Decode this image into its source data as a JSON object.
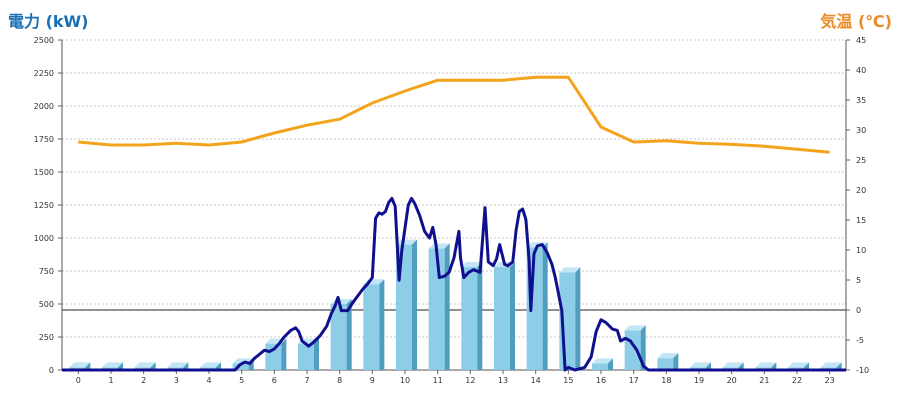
{
  "colors": {
    "bar_face": "#8ecde8",
    "bar_top": "#c2e6f6",
    "bar_side": "#4f9dbf",
    "power_line": "#10108f",
    "temp_line": "#f4a41c",
    "left_title": "#1a6fb4",
    "right_title": "#ee8a23",
    "grid": "#c8c8c8"
  },
  "chart_data": {
    "type": "bar",
    "title_left": "電力 (kW)",
    "title_right": "気温 (℃)",
    "categories": [
      "0",
      "1",
      "2",
      "3",
      "4",
      "5",
      "6",
      "7",
      "8",
      "9",
      "10",
      "11",
      "12",
      "13",
      "14",
      "15",
      "16",
      "17",
      "18",
      "19",
      "20",
      "21",
      "22",
      "23"
    ],
    "y_left": {
      "min": 0,
      "max": 2500,
      "step": 250
    },
    "y_right": {
      "min": -10,
      "max": 45,
      "step": 5
    },
    "grid": true,
    "series": [
      {
        "kind": "bar",
        "axis": "left",
        "values": [
          20,
          20,
          20,
          20,
          20,
          50,
          200,
          200,
          500,
          650,
          950,
          920,
          780,
          780,
          930,
          740,
          50,
          300,
          90,
          20,
          20,
          20,
          20,
          20
        ]
      },
      {
        "kind": "line",
        "axis": "left",
        "points": [
          [
            -0.5,
            0
          ],
          [
            0,
            0
          ],
          [
            1,
            0
          ],
          [
            2,
            0
          ],
          [
            3,
            0
          ],
          [
            4,
            0
          ],
          [
            4.8,
            0
          ],
          [
            4.95,
            40
          ],
          [
            5.1,
            60
          ],
          [
            5.25,
            50
          ],
          [
            5.4,
            90
          ],
          [
            5.5,
            110
          ],
          [
            5.7,
            150
          ],
          [
            5.85,
            140
          ],
          [
            6,
            160
          ],
          [
            6.15,
            200
          ],
          [
            6.3,
            250
          ],
          [
            6.5,
            300
          ],
          [
            6.65,
            320
          ],
          [
            6.75,
            290
          ],
          [
            6.85,
            220
          ],
          [
            6.95,
            200
          ],
          [
            7.05,
            180
          ],
          [
            7.2,
            210
          ],
          [
            7.4,
            260
          ],
          [
            7.6,
            330
          ],
          [
            7.75,
            430
          ],
          [
            7.85,
            480
          ],
          [
            7.95,
            550
          ],
          [
            8.05,
            450
          ],
          [
            8.25,
            450
          ],
          [
            8.4,
            510
          ],
          [
            8.55,
            560
          ],
          [
            8.7,
            610
          ],
          [
            8.85,
            650
          ],
          [
            9.0,
            700
          ],
          [
            9.1,
            1150
          ],
          [
            9.2,
            1190
          ],
          [
            9.3,
            1180
          ],
          [
            9.4,
            1200
          ],
          [
            9.5,
            1270
          ],
          [
            9.6,
            1300
          ],
          [
            9.7,
            1240
          ],
          [
            9.82,
            680
          ],
          [
            9.9,
            900
          ],
          [
            10.1,
            1250
          ],
          [
            10.2,
            1300
          ],
          [
            10.3,
            1260
          ],
          [
            10.45,
            1170
          ],
          [
            10.6,
            1050
          ],
          [
            10.75,
            1000
          ],
          [
            10.85,
            1080
          ],
          [
            10.95,
            950
          ],
          [
            11.05,
            700
          ],
          [
            11.2,
            710
          ],
          [
            11.35,
            740
          ],
          [
            11.5,
            850
          ],
          [
            11.65,
            1050
          ],
          [
            11.7,
            850
          ],
          [
            11.8,
            700
          ],
          [
            11.95,
            740
          ],
          [
            12.1,
            760
          ],
          [
            12.3,
            740
          ],
          [
            12.45,
            1230
          ],
          [
            12.55,
            820
          ],
          [
            12.7,
            790
          ],
          [
            12.8,
            840
          ],
          [
            12.9,
            950
          ],
          [
            13.05,
            800
          ],
          [
            13.15,
            790
          ],
          [
            13.3,
            820
          ],
          [
            13.4,
            1060
          ],
          [
            13.5,
            1200
          ],
          [
            13.6,
            1220
          ],
          [
            13.7,
            1140
          ],
          [
            13.8,
            830
          ],
          [
            13.85,
            450
          ],
          [
            13.95,
            880
          ],
          [
            14.05,
            940
          ],
          [
            14.2,
            950
          ],
          [
            14.35,
            890
          ],
          [
            14.5,
            800
          ],
          [
            14.6,
            700
          ],
          [
            14.8,
            450
          ],
          [
            14.9,
            0
          ],
          [
            15.0,
            20
          ],
          [
            15.2,
            0
          ],
          [
            15.5,
            20
          ],
          [
            15.7,
            100
          ],
          [
            15.85,
            290
          ],
          [
            16.0,
            380
          ],
          [
            16.15,
            360
          ],
          [
            16.35,
            310
          ],
          [
            16.5,
            300
          ],
          [
            16.6,
            220
          ],
          [
            16.75,
            240
          ],
          [
            16.9,
            220
          ],
          [
            17.1,
            150
          ],
          [
            17.3,
            30
          ],
          [
            17.45,
            0
          ],
          [
            17.6,
            0
          ],
          [
            18,
            0
          ],
          [
            19,
            0
          ],
          [
            20,
            0
          ],
          [
            21,
            0
          ],
          [
            22,
            0
          ],
          [
            23,
            0
          ],
          [
            23.5,
            0
          ]
        ]
      },
      {
        "kind": "line",
        "axis": "right",
        "points": [
          [
            0,
            28
          ],
          [
            1,
            27.5
          ],
          [
            2,
            27.5
          ],
          [
            3,
            27.8
          ],
          [
            4,
            27.5
          ],
          [
            5,
            28.0
          ],
          [
            6,
            29.5
          ],
          [
            7,
            30.8
          ],
          [
            8,
            31.8
          ],
          [
            9,
            34.5
          ],
          [
            10,
            36.5
          ],
          [
            11,
            38.3
          ],
          [
            12,
            38.3
          ],
          [
            13,
            38.3
          ],
          [
            14,
            38.8
          ],
          [
            15,
            38.8
          ],
          [
            16,
            30.5
          ],
          [
            17,
            28.0
          ],
          [
            18,
            28.2
          ],
          [
            19,
            27.8
          ],
          [
            20,
            27.6
          ],
          [
            21,
            27.3
          ],
          [
            22,
            26.8
          ],
          [
            23,
            26.3
          ]
        ]
      }
    ]
  }
}
